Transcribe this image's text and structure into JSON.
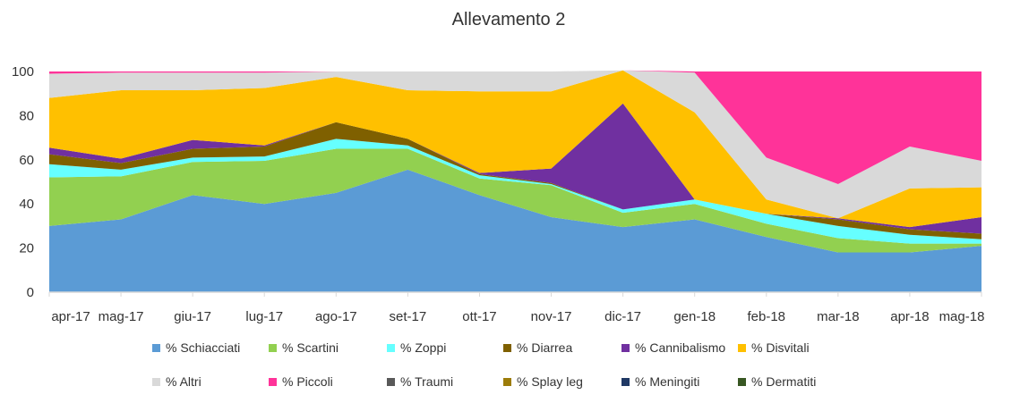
{
  "chart_data": {
    "type": "area",
    "stacked": true,
    "title": "Allevamento 2",
    "xlabel": "",
    "ylabel": "",
    "ylim": [
      0,
      100
    ],
    "yticks": [
      0,
      20,
      40,
      60,
      80,
      100
    ],
    "categories": [
      "apr-17",
      "mag-17",
      "giu-17",
      "lug-17",
      "ago-17",
      "set-17",
      "ott-17",
      "nov-17",
      "dic-17",
      "gen-18",
      "feb-18",
      "mar-18",
      "apr-18",
      "mag-18"
    ],
    "legend_position": "bottom",
    "series": [
      {
        "name": "% Schiacciati",
        "color": "#5B9BD5",
        "values": [
          30,
          33,
          44,
          40,
          45,
          55.5,
          44,
          34,
          29.5,
          33,
          25,
          18,
          18,
          21
        ]
      },
      {
        "name": "% Scartini",
        "color": "#92D050",
        "values": [
          22,
          19.5,
          15,
          19.5,
          20,
          9.5,
          7.5,
          14.5,
          6.5,
          7,
          6,
          6.5,
          4,
          1
        ]
      },
      {
        "name": "% Zoppi",
        "color": "#66FFFF",
        "values": [
          6,
          3,
          2,
          2,
          4.5,
          1.5,
          1.5,
          0.5,
          1.5,
          2,
          4.5,
          5.5,
          4,
          2
        ]
      },
      {
        "name": "% Diarrea",
        "color": "#7F6000",
        "values": [
          4.5,
          3,
          4,
          4.5,
          7.5,
          3,
          0.5,
          0.5,
          0,
          0,
          0,
          3,
          2.5,
          2.5
        ]
      },
      {
        "name": "% Cannibalismo",
        "color": "#7030A0",
        "values": [
          3,
          2,
          4,
          0.5,
          0,
          0,
          0.5,
          6.5,
          48,
          0,
          0,
          0.5,
          1,
          7.5
        ]
      },
      {
        "name": "% Disvitali",
        "color": "#FFC000",
        "values": [
          22.5,
          31,
          22.5,
          26,
          20.5,
          22,
          37,
          35,
          15,
          39.5,
          6.5,
          0,
          17.5,
          13.5
        ]
      },
      {
        "name": "% Altri",
        "color": "#D9D9D9",
        "values": [
          11,
          8,
          8,
          7,
          2.5,
          8.5,
          9,
          9,
          0,
          18,
          19,
          15.5,
          19,
          12
        ]
      },
      {
        "name": "% Piccoli",
        "color": "#FF3399",
        "values": [
          1,
          0.5,
          0.5,
          0.5,
          0,
          0,
          0,
          0,
          0,
          0.5,
          39,
          51,
          34,
          40.5
        ]
      },
      {
        "name": "% Traumi",
        "color": "#595959",
        "values": [
          0,
          0,
          0,
          0,
          0,
          0,
          0,
          0,
          0,
          0,
          0,
          0,
          0,
          0
        ]
      },
      {
        "name": "% Splay leg",
        "color": "#9C7C0A",
        "values": [
          0,
          0,
          0,
          0,
          0,
          0,
          0,
          0,
          0,
          0,
          0,
          0,
          0,
          0
        ]
      },
      {
        "name": "% Meningiti",
        "color": "#1F3864",
        "values": [
          0,
          0,
          0,
          0,
          0,
          0,
          0,
          0,
          0,
          0,
          0,
          0,
          0,
          0
        ]
      },
      {
        "name": "% Dermatiti",
        "color": "#385723",
        "values": [
          0,
          0,
          0,
          0,
          0,
          0,
          0,
          0,
          0,
          0,
          0,
          0,
          0,
          0
        ]
      }
    ]
  }
}
